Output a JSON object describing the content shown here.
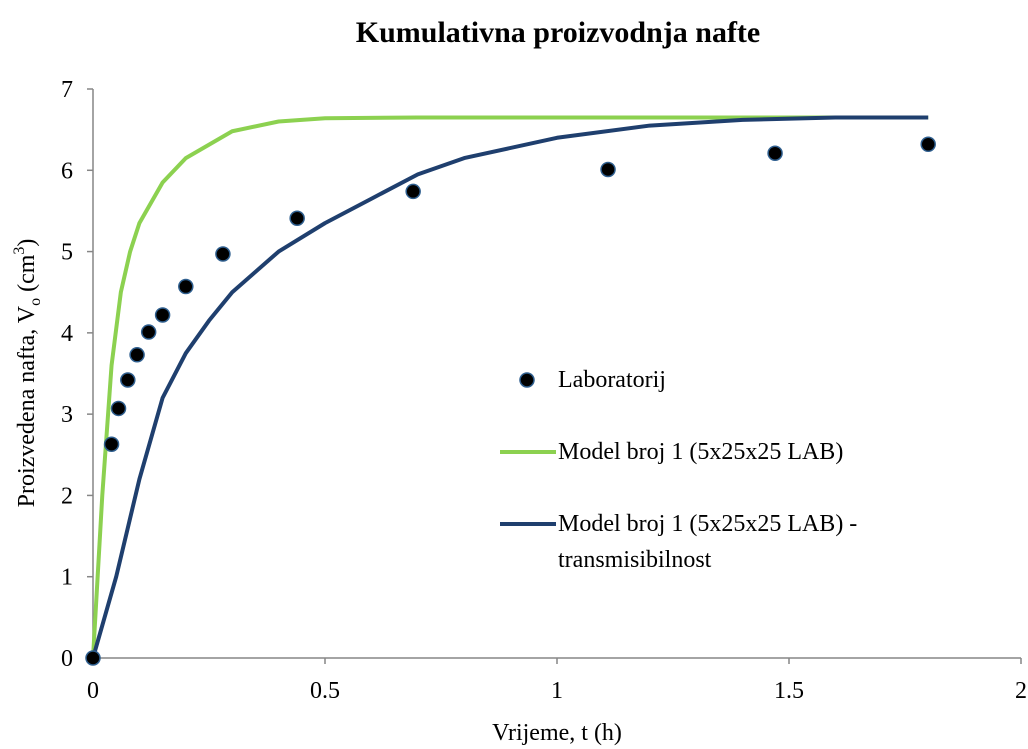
{
  "chart_data": {
    "type": "line",
    "title": "Kumulativna proizvodnja nafte",
    "xlabel": "Vrijeme, t (h)",
    "ylabel": [
      "Proizvedena nafta, V",
      "o",
      " (cm",
      "3",
      ")"
    ],
    "xlim": [
      0,
      2
    ],
    "xticks": [
      0,
      0.5,
      1,
      1.5,
      2
    ],
    "ylim": [
      0,
      7
    ],
    "yticks": [
      0,
      1,
      2,
      3,
      4,
      5,
      6,
      7
    ],
    "series": [
      {
        "name": "Laboratorij",
        "type": "scatter",
        "color": "#000000",
        "edge": "#2f5f8f",
        "x": [
          0,
          0.04,
          0.055,
          0.075,
          0.095,
          0.12,
          0.15,
          0.2,
          0.28,
          0.44,
          0.69,
          1.11,
          1.47,
          1.8
        ],
        "values": [
          0,
          2.63,
          3.07,
          3.42,
          3.73,
          4.01,
          4.22,
          4.57,
          4.97,
          5.41,
          5.74,
          6.01,
          6.21,
          6.32
        ]
      },
      {
        "name": "Model broj 1 (5x25x25 LAB)",
        "type": "line",
        "color": "#8cd150",
        "x": [
          0,
          0.02,
          0.04,
          0.06,
          0.08,
          0.1,
          0.15,
          0.2,
          0.3,
          0.4,
          0.5,
          0.7,
          1,
          1.8
        ],
        "values": [
          0,
          2.0,
          3.6,
          4.5,
          5.0,
          5.35,
          5.85,
          6.15,
          6.48,
          6.6,
          6.64,
          6.65,
          6.65,
          6.65
        ]
      },
      {
        "name": "Model broj 1 (5x25x25 LAB) - transmisibilnost",
        "type": "line",
        "color": "#1f3f6e",
        "x": [
          0,
          0.05,
          0.1,
          0.15,
          0.2,
          0.25,
          0.3,
          0.4,
          0.5,
          0.6,
          0.7,
          0.8,
          1,
          1.2,
          1.4,
          1.6,
          1.8
        ],
        "values": [
          0,
          1.0,
          2.2,
          3.2,
          3.75,
          4.15,
          4.5,
          5.0,
          5.35,
          5.65,
          5.95,
          6.15,
          6.4,
          6.55,
          6.62,
          6.65,
          6.65
        ]
      }
    ]
  }
}
